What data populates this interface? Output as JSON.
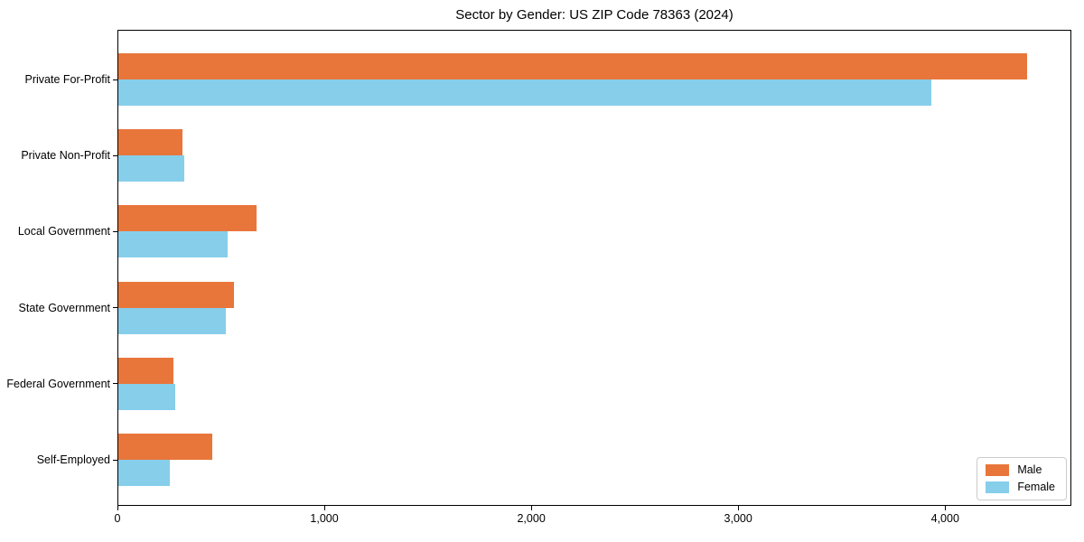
{
  "title": "Sector by Gender: US ZIP Code 78363 (2024)",
  "chart_data": {
    "type": "bar",
    "orientation": "horizontal",
    "title": "Sector by Gender: US ZIP Code 78363 (2024)",
    "xlabel": "",
    "ylabel": "",
    "categories": [
      "Private For-Profit",
      "Private Non-Profit",
      "Local Government",
      "State Government",
      "Federal Government",
      "Self-Employed"
    ],
    "series": [
      {
        "name": "Male",
        "color": "#E8763B",
        "values": [
          4390,
          310,
          670,
          560,
          265,
          455
        ]
      },
      {
        "name": "Female",
        "color": "#87CEEB",
        "values": [
          3930,
          320,
          530,
          520,
          275,
          250
        ]
      }
    ],
    "xlim": [
      0,
      4610
    ],
    "x_ticks": [
      0,
      1000,
      2000,
      3000,
      4000
    ],
    "x_tick_labels": [
      "0",
      "1,000",
      "2,000",
      "3,000",
      "4,000"
    ],
    "grid": false,
    "legend_position": "lower right",
    "colors": {
      "male": "#E8763B",
      "female": "#87CEEB",
      "spine": "#000000",
      "legend_border": "#cccccc",
      "background": "#ffffff",
      "text": "#000000"
    }
  }
}
